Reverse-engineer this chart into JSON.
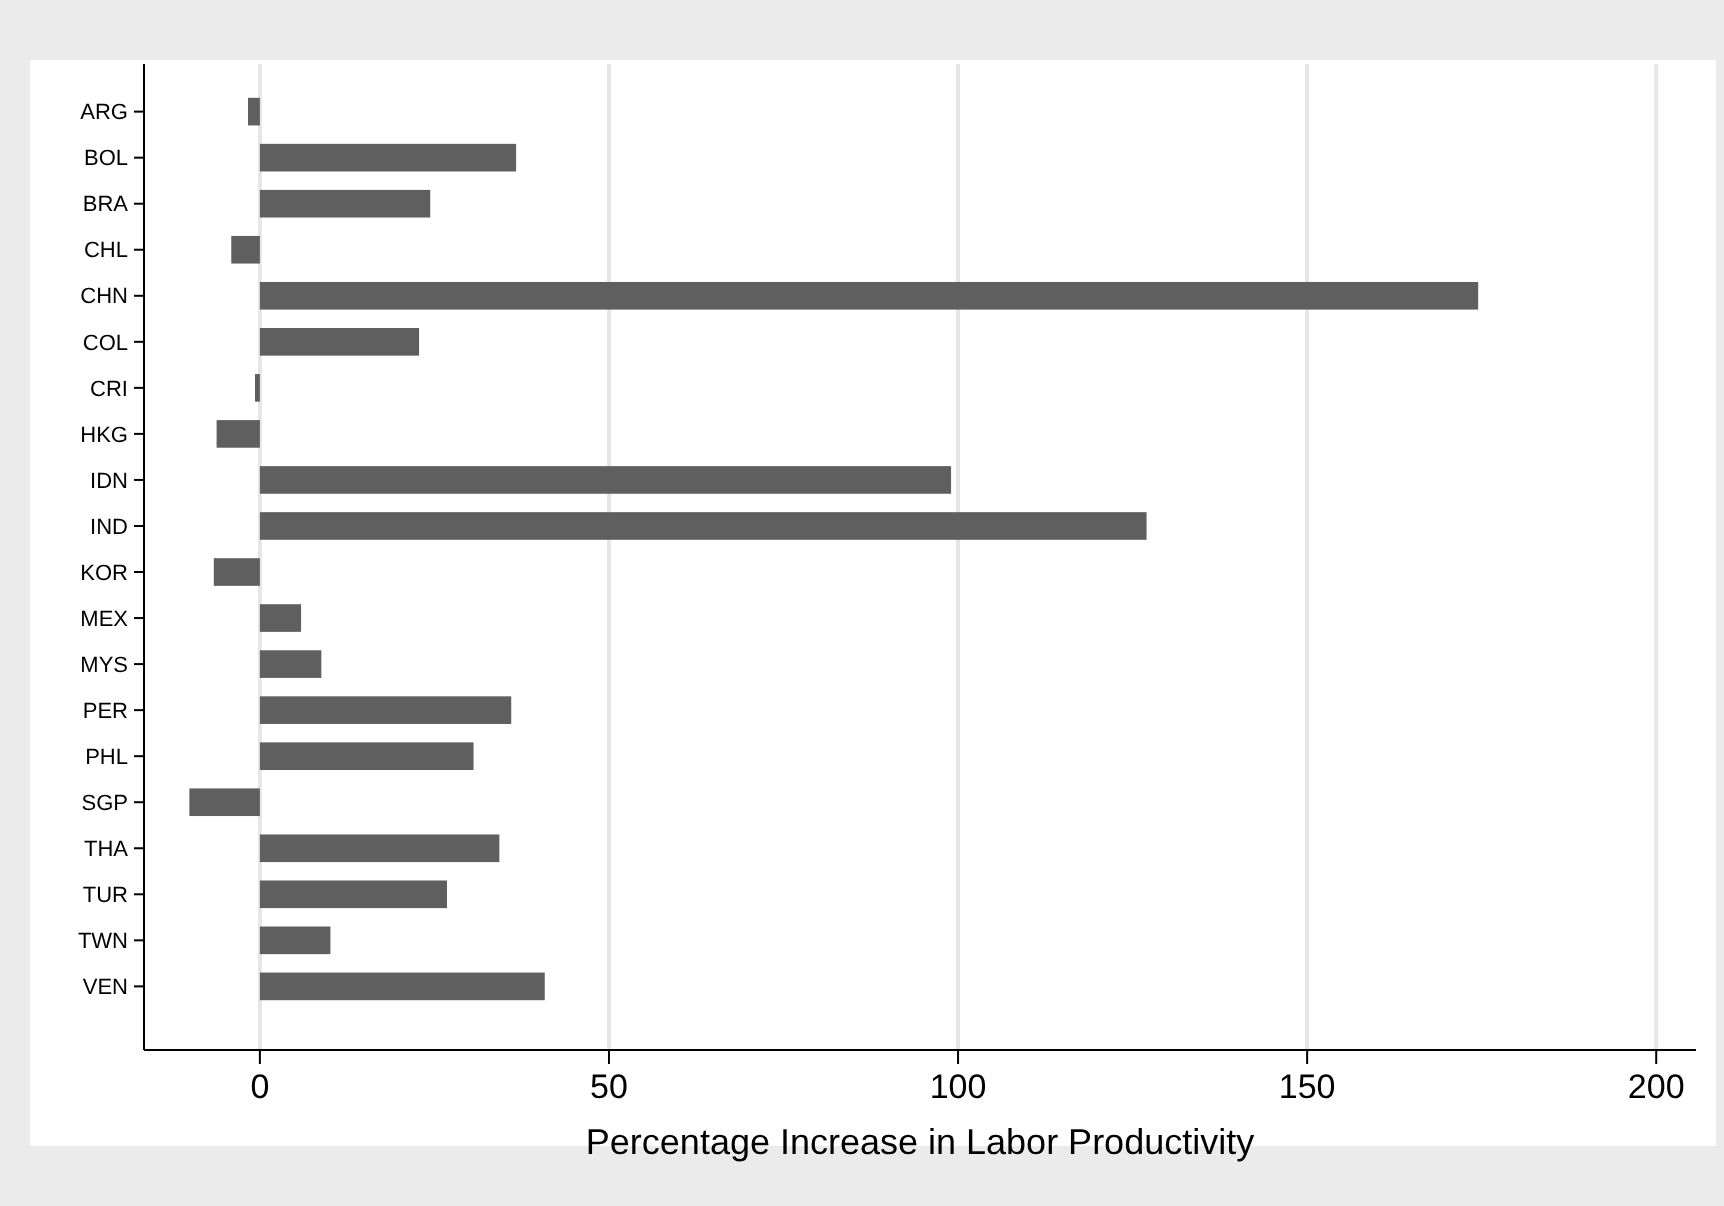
{
  "chart_data": {
    "type": "bar",
    "orientation": "horizontal",
    "xlabel": "Percentage Increase in Labor Productivity",
    "categories": [
      "ARG",
      "BOL",
      "BRA",
      "CHL",
      "CHN",
      "COL",
      "CRI",
      "HKG",
      "IDN",
      "IND",
      "KOR",
      "MEX",
      "MYS",
      "PER",
      "PHL",
      "SGP",
      "THA",
      "TUR",
      "TWN",
      "VEN"
    ],
    "values": [
      -1.7,
      36.7,
      24.4,
      -4.1,
      174.5,
      22.8,
      -0.7,
      -6.2,
      99.0,
      127.0,
      -6.6,
      5.9,
      8.8,
      36.0,
      30.6,
      -10.1,
      34.3,
      26.8,
      10.1,
      40.8
    ],
    "color": "#5f5f5f",
    "xlim": [
      -16.6,
      205.7
    ],
    "xticks": [
      0,
      50,
      100,
      150,
      200
    ],
    "grid": "x"
  }
}
